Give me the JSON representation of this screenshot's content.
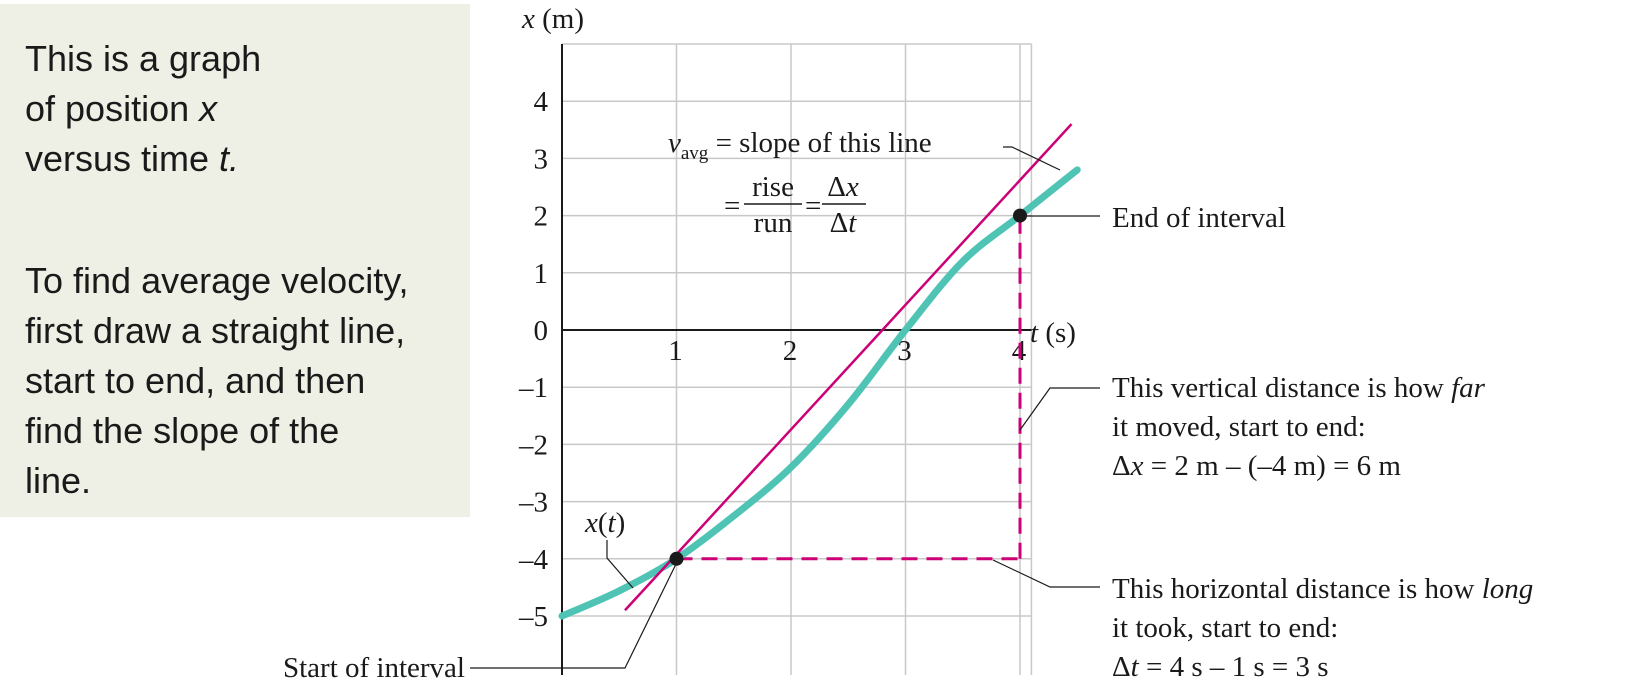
{
  "panel": {
    "line1_a": "This is a graph",
    "line2_a": "of position ",
    "line2_var": "x",
    "line3_a": "versus time ",
    "line3_var": "t.",
    "para2": "To find average velocity,\nfirst draw a straight line,\nstart to end, and then\nfind the slope of the\nline."
  },
  "chart_data": {
    "type": "line",
    "xlabel_var": "t",
    "xlabel_unit": " (s)",
    "ylabel_var": "x",
    "ylabel_unit": " (m)",
    "xlim": [
      0,
      4.1
    ],
    "ylim": [
      -6,
      5
    ],
    "grid": true,
    "x_ticks": [
      1,
      2,
      3,
      4
    ],
    "x_tick_labels": [
      "1",
      "2",
      "3",
      "4"
    ],
    "y_ticks": [
      4,
      3,
      2,
      1,
      0,
      -1,
      -2,
      -3,
      -4,
      -5
    ],
    "y_tick_labels": [
      "4",
      "3",
      "2",
      "1",
      "0",
      "–1",
      "–2",
      "–3",
      "–4",
      "–5"
    ],
    "series": [
      {
        "name": "x(t)",
        "name_var": "x",
        "name_arg": "t",
        "color": "#4fc4b5",
        "x": [
          0,
          0.5,
          1,
          1.5,
          2,
          2.5,
          3,
          3.5,
          4,
          4.5
        ],
        "y": [
          -5,
          -4.56,
          -4,
          -3.25,
          -2.4,
          -1.3,
          0,
          1.2,
          2,
          2.8
        ]
      }
    ],
    "secant": {
      "x": [
        0.55,
        4.45
      ],
      "y": [
        -4.9,
        3.6
      ],
      "color": "#cc0077"
    },
    "points": [
      {
        "x": 1,
        "y": -4
      },
      {
        "x": 4,
        "y": 2
      }
    ],
    "annotations": {
      "vavg_sym": "v",
      "vavg_sub": "avg",
      "slope_text": " = slope of this line",
      "eq": "=",
      "rise": "rise",
      "run": "run",
      "dx_d": "Δ",
      "dx_v": "x",
      "dt_d": "Δ",
      "dt_v": "t",
      "end_label": "End of interval",
      "start_label": "Start of interval",
      "vert_1a": "This vertical distance is how ",
      "vert_1b": "far",
      "vert_2": "it moved, start to end:",
      "vert_3a": "Δ",
      "vert_3b": "x",
      "vert_3c": " = 2 m – (–4 m) = 6 m",
      "horiz_1a": "This horizontal distance is how ",
      "horiz_1b": "long",
      "horiz_2": "it took, start to end:",
      "horiz_3a": "Δ",
      "horiz_3b": "t",
      "horiz_3c": " = 4 s – 1 s = 3 s"
    }
  }
}
